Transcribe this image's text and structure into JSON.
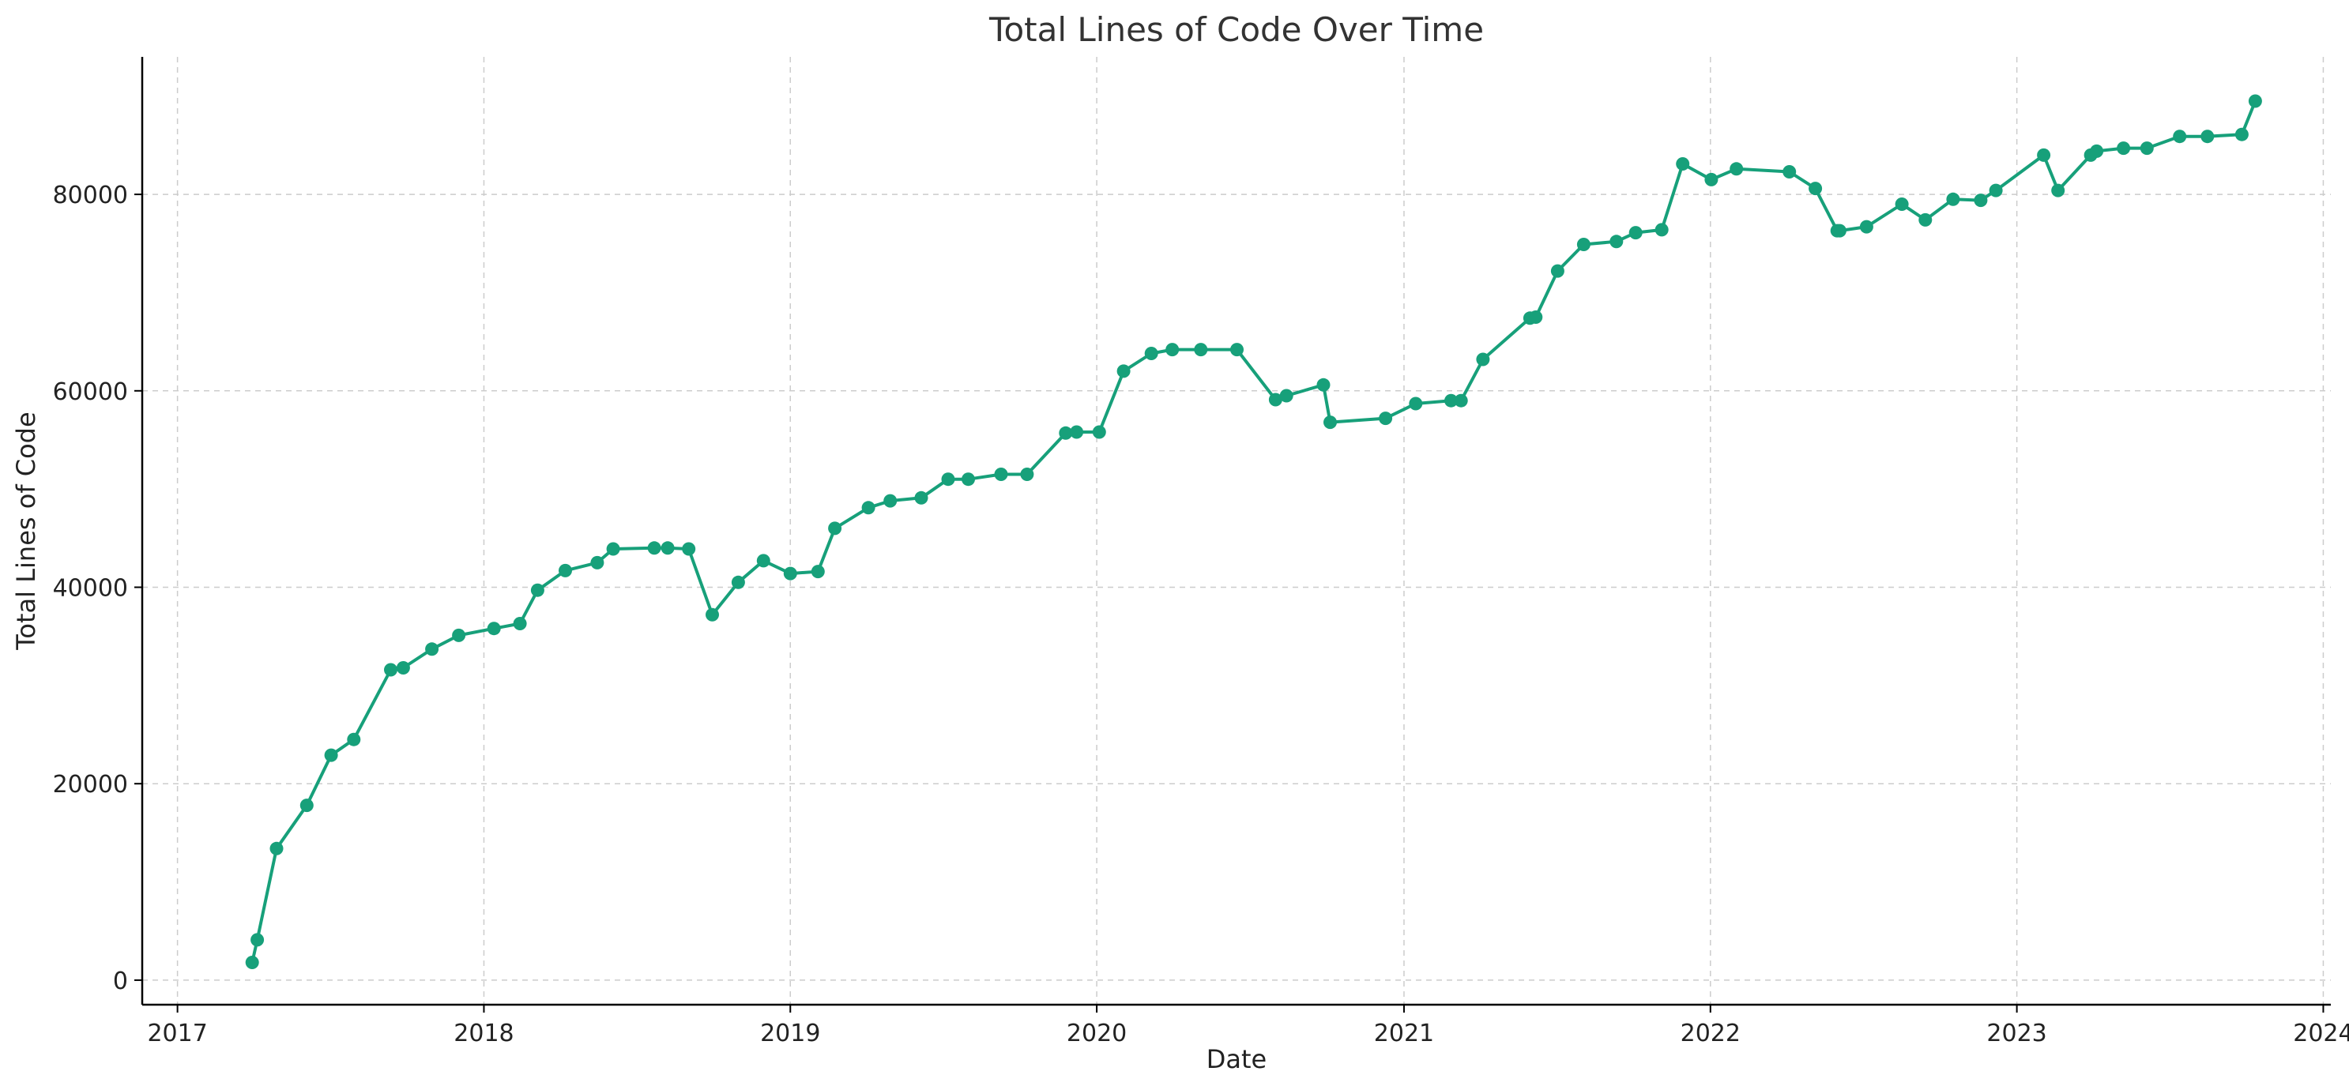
{
  "chart_data": {
    "type": "line",
    "title": "Total Lines of Code Over Time",
    "xlabel": "Date",
    "ylabel": "Total Lines of Code",
    "xlim": [
      "2016-11-20",
      "2024-01-10"
    ],
    "ylim": [
      -2500,
      94000
    ],
    "x_ticks": [
      "2017-01-01",
      "2018-01-01",
      "2019-01-01",
      "2020-01-01",
      "2021-01-01",
      "2022-01-01",
      "2023-01-01",
      "2024-01-01"
    ],
    "x_tick_labels": [
      "2017",
      "2018",
      "2019",
      "2020",
      "2021",
      "2022",
      "2023",
      "2024"
    ],
    "y_ticks": [
      0,
      20000,
      40000,
      60000,
      80000
    ],
    "y_tick_labels": [
      "0",
      "20000",
      "40000",
      "60000",
      "80000"
    ],
    "grid": true,
    "legend": false,
    "color": "#17a07a",
    "series": [
      {
        "points": [
          [
            "2017-03-31",
            1800
          ],
          [
            "2017-04-06",
            4100
          ],
          [
            "2017-04-29",
            13400
          ],
          [
            "2017-06-04",
            17800
          ],
          [
            "2017-07-03",
            22900
          ],
          [
            "2017-07-30",
            24500
          ],
          [
            "2017-09-12",
            31600
          ],
          [
            "2017-09-27",
            31800
          ],
          [
            "2017-10-31",
            33700
          ],
          [
            "2017-12-02",
            35100
          ],
          [
            "2018-01-13",
            35800
          ],
          [
            "2018-02-13",
            36300
          ],
          [
            "2018-03-06",
            39700
          ],
          [
            "2018-04-08",
            41700
          ],
          [
            "2018-05-16",
            42500
          ],
          [
            "2018-06-04",
            43900
          ],
          [
            "2018-07-23",
            44000
          ],
          [
            "2018-08-08",
            44000
          ],
          [
            "2018-09-02",
            43900
          ],
          [
            "2018-09-30",
            37200
          ],
          [
            "2018-10-31",
            40500
          ],
          [
            "2018-11-30",
            42700
          ],
          [
            "2019-01-01",
            41400
          ],
          [
            "2019-02-03",
            41600
          ],
          [
            "2019-02-23",
            46000
          ],
          [
            "2019-04-04",
            48100
          ],
          [
            "2019-04-30",
            48800
          ],
          [
            "2019-06-06",
            49100
          ],
          [
            "2019-07-08",
            51000
          ],
          [
            "2019-08-01",
            51000
          ],
          [
            "2019-09-09",
            51500
          ],
          [
            "2019-10-10",
            51500
          ],
          [
            "2019-11-25",
            55700
          ],
          [
            "2019-12-08",
            55800
          ],
          [
            "2020-01-04",
            55800
          ],
          [
            "2020-02-02",
            62000
          ],
          [
            "2020-03-06",
            63800
          ],
          [
            "2020-03-31",
            64200
          ],
          [
            "2020-05-04",
            64200
          ],
          [
            "2020-06-16",
            64200
          ],
          [
            "2020-08-01",
            59100
          ],
          [
            "2020-08-14",
            59500
          ],
          [
            "2020-09-27",
            60600
          ],
          [
            "2020-10-05",
            56800
          ],
          [
            "2020-12-10",
            57200
          ],
          [
            "2021-01-15",
            58700
          ],
          [
            "2021-02-26",
            59000
          ],
          [
            "2021-03-10",
            59000
          ],
          [
            "2021-04-05",
            63200
          ],
          [
            "2021-05-31",
            67400
          ],
          [
            "2021-06-07",
            67500
          ],
          [
            "2021-07-03",
            72200
          ],
          [
            "2021-08-03",
            74900
          ],
          [
            "2021-09-11",
            75200
          ],
          [
            "2021-10-04",
            76100
          ],
          [
            "2021-11-04",
            76400
          ],
          [
            "2021-11-29",
            83100
          ],
          [
            "2022-01-02",
            81500
          ],
          [
            "2022-02-01",
            82600
          ],
          [
            "2022-04-05",
            82300
          ],
          [
            "2022-05-06",
            80600
          ],
          [
            "2022-06-01",
            76300
          ],
          [
            "2022-06-04",
            76300
          ],
          [
            "2022-07-06",
            76700
          ],
          [
            "2022-08-17",
            79000
          ],
          [
            "2022-09-14",
            77400
          ],
          [
            "2022-10-17",
            79500
          ],
          [
            "2022-11-19",
            79400
          ],
          [
            "2022-12-07",
            80400
          ],
          [
            "2023-02-02",
            84000
          ],
          [
            "2023-02-19",
            80400
          ],
          [
            "2023-03-30",
            84000
          ],
          [
            "2023-04-06",
            84400
          ],
          [
            "2023-05-08",
            84700
          ],
          [
            "2023-06-05",
            84700
          ],
          [
            "2023-07-14",
            85900
          ],
          [
            "2023-08-16",
            85900
          ],
          [
            "2023-09-26",
            86100
          ],
          [
            "2023-10-12",
            89500
          ]
        ]
      }
    ]
  }
}
